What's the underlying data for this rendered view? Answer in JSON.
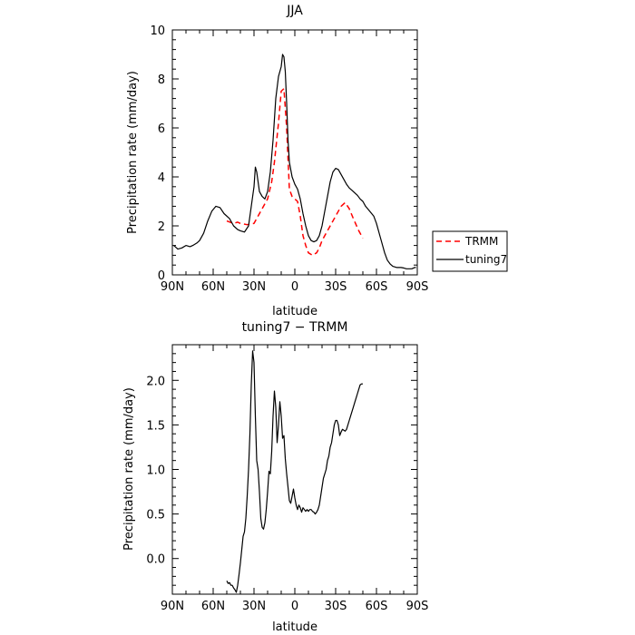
{
  "chart_data": [
    {
      "type": "line",
      "title": "JJA",
      "xlabel": "latitude",
      "ylabel": "Precipitation rate (mm/day)",
      "xlim": [
        90,
        -90
      ],
      "ylim": [
        0,
        10
      ],
      "x_ticks": [
        90,
        60,
        30,
        0,
        -30,
        -60,
        -90
      ],
      "x_tick_labels": [
        "90N",
        "60N",
        "30N",
        "0",
        "30S",
        "60S",
        "90S"
      ],
      "y_ticks": [
        0,
        2,
        4,
        6,
        8,
        10
      ],
      "y_tick_labels": [
        "0",
        "2",
        "4",
        "6",
        "8",
        "10"
      ],
      "legend_position": "outside-right",
      "series": [
        {
          "name": "TRMM",
          "color": "#ff0000",
          "dash": "dashed",
          "x": [
            50,
            45,
            42,
            40,
            35,
            30,
            25,
            20,
            17,
            15,
            12,
            10,
            8,
            6,
            4,
            2,
            0,
            -2,
            -4,
            -6,
            -8,
            -10,
            -13,
            -16,
            -18,
            -20,
            -25,
            -30,
            -34,
            -37,
            -40,
            -43,
            -47,
            -50
          ],
          "y": [
            2.2,
            2.1,
            2.15,
            2.1,
            2.05,
            2.1,
            2.6,
            3.1,
            3.8,
            4.6,
            6.2,
            7.5,
            7.6,
            6.0,
            3.5,
            3.2,
            3.1,
            3.0,
            2.4,
            1.6,
            1.2,
            0.9,
            0.8,
            0.9,
            1.1,
            1.4,
            1.9,
            2.4,
            2.8,
            2.95,
            2.7,
            2.3,
            1.8,
            1.5
          ]
        },
        {
          "name": "tuning7",
          "color": "#000000",
          "dash": "solid",
          "x": [
            89,
            86,
            83,
            80,
            77,
            75,
            72,
            70,
            67,
            64,
            61,
            58,
            55,
            52,
            48,
            45,
            42,
            40,
            37,
            34,
            32,
            30,
            29,
            28,
            27,
            26,
            24,
            22,
            20,
            18,
            16,
            14,
            12,
            10,
            9,
            8,
            7,
            6,
            5,
            4,
            3,
            2,
            0,
            -2,
            -4,
            -6,
            -8,
            -10,
            -12,
            -14,
            -16,
            -18,
            -20,
            -22,
            -24,
            -26,
            -28,
            -30,
            -32,
            -34,
            -36,
            -38,
            -40,
            -42,
            -44,
            -46,
            -48,
            -50,
            -52,
            -55,
            -58,
            -60,
            -62,
            -64,
            -66,
            -68,
            -70,
            -72,
            -75,
            -78,
            -80,
            -82,
            -84,
            -86,
            -88,
            -89
          ],
          "y": [
            1.2,
            1.05,
            1.1,
            1.2,
            1.15,
            1.2,
            1.3,
            1.4,
            1.7,
            2.2,
            2.6,
            2.8,
            2.75,
            2.5,
            2.3,
            2.0,
            1.85,
            1.8,
            1.75,
            2.0,
            2.8,
            3.6,
            4.4,
            4.2,
            3.8,
            3.4,
            3.2,
            3.1,
            3.4,
            4.2,
            5.5,
            7.2,
            8.1,
            8.5,
            9.0,
            8.9,
            8.3,
            7.0,
            5.5,
            4.6,
            4.3,
            4.0,
            3.7,
            3.5,
            3.1,
            2.5,
            2.0,
            1.6,
            1.4,
            1.35,
            1.4,
            1.6,
            2.0,
            2.6,
            3.2,
            3.8,
            4.2,
            4.35,
            4.3,
            4.1,
            3.9,
            3.7,
            3.55,
            3.45,
            3.35,
            3.25,
            3.1,
            3.0,
            2.8,
            2.6,
            2.4,
            2.1,
            1.7,
            1.3,
            0.9,
            0.6,
            0.45,
            0.35,
            0.3,
            0.3,
            0.28,
            0.25,
            0.25,
            0.25,
            0.3,
            0.3
          ]
        }
      ]
    },
    {
      "type": "line",
      "title": "tuning7 − TRMM",
      "xlabel": "latitude",
      "ylabel": "Precipitation rate (mm/day)",
      "xlim": [
        90,
        -90
      ],
      "ylim": [
        -0.4,
        2.4
      ],
      "x_ticks": [
        90,
        60,
        30,
        0,
        -30,
        -60,
        -90
      ],
      "x_tick_labels": [
        "90N",
        "60N",
        "30N",
        "0",
        "30S",
        "60S",
        "90S"
      ],
      "y_ticks": [
        0.0,
        0.5,
        1.0,
        1.5,
        2.0
      ],
      "y_tick_labels": [
        "0.0",
        "0.5",
        "1.0",
        "1.5",
        "2.0"
      ],
      "series": [
        {
          "color": "#000000",
          "dash": "solid",
          "x": [
            50,
            49,
            48,
            47,
            46,
            45,
            44,
            43,
            42,
            41,
            40,
            39,
            38,
            37,
            36,
            35,
            34,
            33,
            32,
            31,
            30,
            29,
            28,
            27,
            26,
            25,
            24,
            23,
            22,
            21,
            20,
            19,
            18,
            17,
            16,
            15,
            14,
            13,
            12,
            11,
            10,
            9,
            8,
            7,
            6,
            5,
            4,
            3,
            2,
            1,
            0,
            -1,
            -2,
            -3,
            -4,
            -5,
            -6,
            -7,
            -8,
            -9,
            -10,
            -11,
            -12,
            -13,
            -14,
            -15,
            -16,
            -17,
            -18,
            -19,
            -20,
            -21,
            -22,
            -23,
            -24,
            -25,
            -26,
            -27,
            -28,
            -29,
            -30,
            -31,
            -32,
            -33,
            -34,
            -35,
            -36,
            -37,
            -38,
            -39,
            -40,
            -41,
            -42,
            -43,
            -44,
            -45,
            -46,
            -47,
            -48,
            -49,
            -50
          ],
          "y": [
            -0.25,
            -0.28,
            -0.27,
            -0.3,
            -0.3,
            -0.33,
            -0.35,
            -0.38,
            -0.3,
            -0.18,
            -0.05,
            0.1,
            0.25,
            0.3,
            0.45,
            0.7,
            1.0,
            1.4,
            1.95,
            2.33,
            2.2,
            1.6,
            1.1,
            1.0,
            0.75,
            0.45,
            0.35,
            0.33,
            0.4,
            0.55,
            0.75,
            0.98,
            0.95,
            1.2,
            1.6,
            1.88,
            1.7,
            1.3,
            1.5,
            1.76,
            1.6,
            1.35,
            1.38,
            1.12,
            0.95,
            0.8,
            0.65,
            0.62,
            0.7,
            0.78,
            0.68,
            0.6,
            0.55,
            0.6,
            0.57,
            0.52,
            0.57,
            0.55,
            0.53,
            0.55,
            0.53,
            0.55,
            0.55,
            0.53,
            0.52,
            0.5,
            0.52,
            0.55,
            0.6,
            0.7,
            0.8,
            0.9,
            0.95,
            1.0,
            1.1,
            1.15,
            1.25,
            1.3,
            1.4,
            1.5,
            1.55,
            1.55,
            1.5,
            1.38,
            1.42,
            1.45,
            1.44,
            1.43,
            1.45,
            1.5,
            1.55,
            1.6,
            1.65,
            1.7,
            1.75,
            1.8,
            1.85,
            1.9,
            1.95,
            1.96,
            1.96
          ]
        }
      ]
    }
  ]
}
